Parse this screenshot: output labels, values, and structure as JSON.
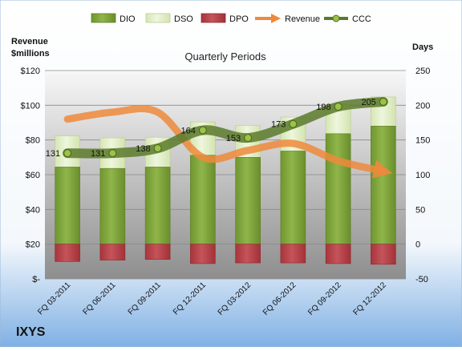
{
  "chart_data": {
    "type": "bar",
    "title": "Quarterly Periods",
    "company": "IXYS",
    "left_axis_title": [
      "Revenue",
      "$millions"
    ],
    "right_axis_title": "Days",
    "left_ylim": [
      0,
      120
    ],
    "left_ticks": [
      "$-",
      "$20",
      "$40",
      "$60",
      "$80",
      "$100",
      "$120"
    ],
    "left_tick_values": [
      0,
      20,
      40,
      60,
      80,
      100,
      120
    ],
    "right_ylim": [
      -50,
      250
    ],
    "right_ticks": [
      "-50",
      "0",
      "50",
      "100",
      "150",
      "200",
      "250"
    ],
    "right_tick_values": [
      -50,
      0,
      50,
      100,
      150,
      200,
      250
    ],
    "categories": [
      "FQ 03-2011",
      "FQ 06-2011",
      "FQ 09-2011",
      "FQ 12-2011",
      "FQ 03-2012",
      "FQ 06-2012",
      "FQ 09-2012",
      "FQ 12-2012"
    ],
    "series": [
      {
        "name": "DIO",
        "values": [
          111,
          109,
          111,
          128,
          125,
          134,
          159,
          170
        ],
        "color": "#7aa03a"
      },
      {
        "name": "DSO",
        "values": [
          45,
          44,
          43,
          48,
          46,
          49,
          42,
          42
        ],
        "color": "#e2efc8"
      },
      {
        "name": "DPO",
        "values": [
          -25,
          -23,
          -22,
          -28,
          -27,
          -27,
          -28,
          -29
        ],
        "color": "#b8434a"
      },
      {
        "name": "Revenue",
        "values": [
          92,
          96,
          96,
          70,
          74,
          78,
          68,
          62
        ],
        "color": "#ee8a3c"
      },
      {
        "name": "CCC",
        "values": [
          131,
          131,
          138,
          164,
          153,
          173,
          198,
          205
        ],
        "color": "#5a7a2a"
      }
    ],
    "ccc_labels": [
      "131",
      "131",
      "138",
      "164",
      "153",
      "173",
      "198",
      "205"
    ]
  }
}
